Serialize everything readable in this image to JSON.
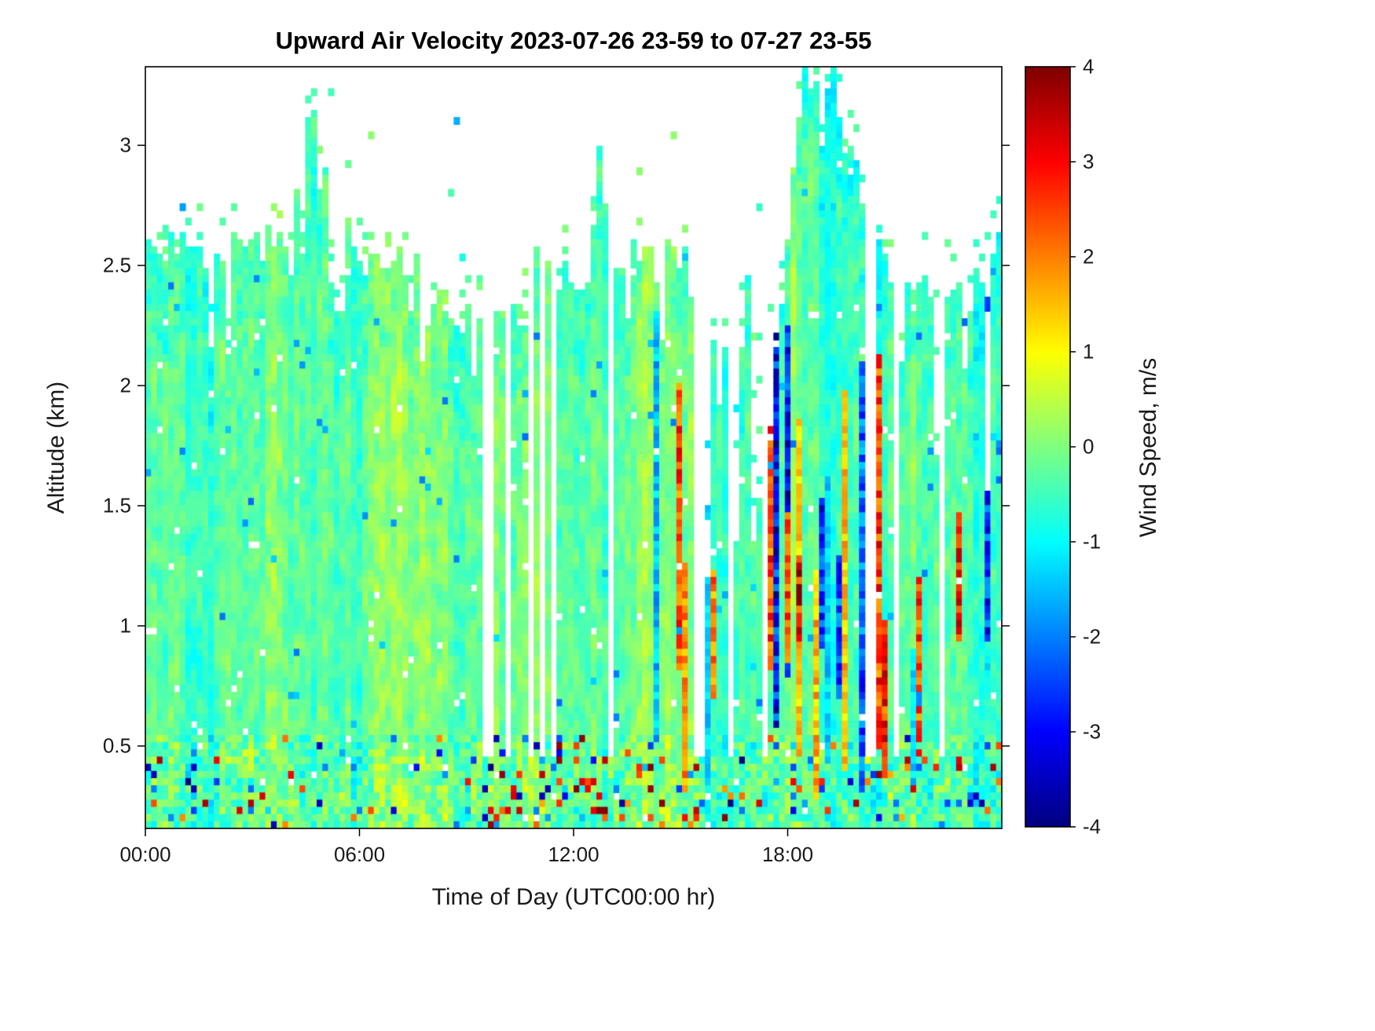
{
  "title": "Upward Air Velocity 2023-07-26 23-59 to 07-27 23-55",
  "colors": {
    "background": "#ffffff",
    "axis": "#000000",
    "text": "#1a1a1a"
  },
  "chart_data": {
    "type": "heatmap",
    "title": "Upward Air Velocity 2023-07-26 23-59 to 07-27 23-55",
    "xlabel": "Time of Day (UTC00:00 hr)",
    "ylabel": "Altitude (km)",
    "x_tick_labels": [
      "00:00",
      "06:00",
      "12:00",
      "18:00"
    ],
    "x_ticks_hours": [
      0,
      6,
      12,
      18
    ],
    "x_range_hours": [
      0,
      24
    ],
    "y_ticks_km": [
      0.5,
      1,
      1.5,
      2,
      2.5,
      3
    ],
    "y_range_km": [
      0.157,
      3.327
    ],
    "grid": false,
    "colorbar": {
      "label": "Wind Speed, m/s",
      "ticks": [
        4,
        3,
        2,
        1,
        0,
        -1,
        -2,
        -3,
        -4
      ],
      "clim": [
        -4,
        4
      ],
      "colormap": "jet",
      "position": "right"
    },
    "field_summary": {
      "background_mean_mps": -0.3,
      "background_std_mps": 0.55,
      "surface_layer_top_km": 0.55,
      "surface_extreme_fraction": 0.05,
      "convective_streaks_after_hour": 14.2,
      "cloud_top_profile_km": {
        "hours": [
          0,
          0.5,
          1,
          2,
          3,
          4,
          4.6,
          5.0,
          5.4,
          6,
          7,
          7.5,
          8,
          8.5,
          9,
          9.5,
          10,
          10.5,
          11,
          11.5,
          12,
          12.5,
          12.8,
          13,
          13.5,
          14,
          14.5,
          15,
          15.3,
          15.7,
          16,
          16.5,
          17,
          17.3,
          17.7,
          18,
          18.4,
          18.8,
          19.2,
          19.6,
          20,
          20.5,
          21,
          21.5,
          22,
          22.5,
          23,
          23.5,
          24
        ],
        "top_km": [
          2.65,
          2.55,
          2.5,
          2.55,
          2.6,
          2.55,
          3.1,
          2.95,
          2.6,
          2.45,
          2.5,
          2.4,
          2.3,
          2.28,
          2.3,
          2.25,
          2.35,
          2.4,
          2.45,
          2.5,
          2.38,
          2.5,
          3.0,
          2.5,
          2.6,
          2.5,
          2.55,
          2.6,
          2.4,
          2.1,
          2.3,
          1.95,
          2.5,
          2.9,
          2.2,
          2.65,
          3.3,
          3.35,
          3.3,
          3.0,
          2.9,
          2.6,
          2.5,
          2.3,
          2.4,
          2.45,
          2.35,
          2.45,
          2.55
        ]
      },
      "gap_intervals_hours": [
        [
          9.5,
          9.78
        ],
        [
          10.05,
          10.18
        ],
        [
          10.78,
          10.95
        ],
        [
          11.05,
          11.22
        ],
        [
          11.38,
          11.58
        ],
        [
          13.02,
          13.1
        ],
        [
          15.38,
          15.62
        ],
        [
          16.3,
          16.52
        ],
        [
          17.32,
          17.5
        ],
        [
          20.2,
          20.42
        ],
        [
          21.0,
          21.12
        ],
        [
          22.3,
          22.4
        ]
      ],
      "gap_floor_km": 0.45
    },
    "render_seed": 20230726
  }
}
